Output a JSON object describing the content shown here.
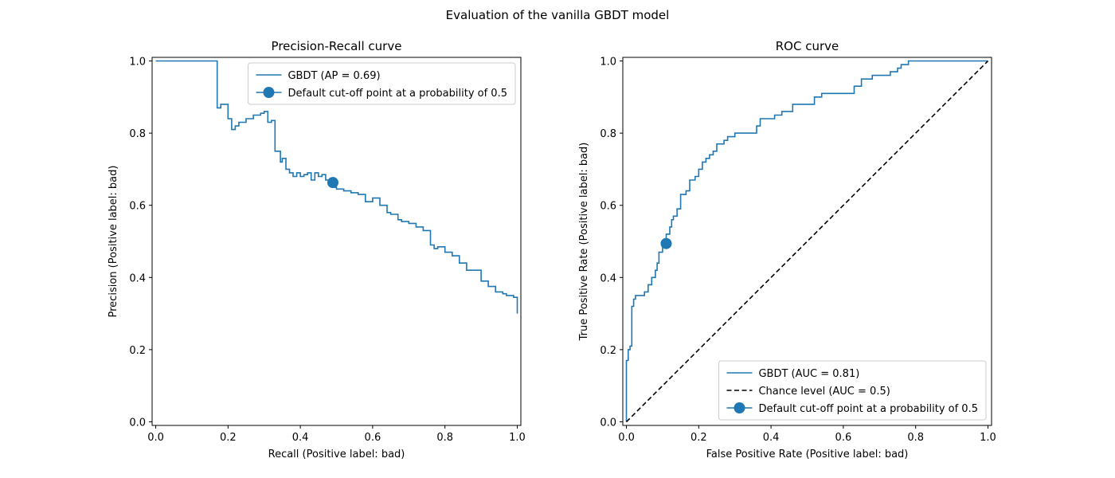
{
  "figure": {
    "suptitle": "Evaluation of the vanilla GBDT model"
  },
  "colors": {
    "series": "#1f77b4",
    "chance": "#000000",
    "axes": "#000000",
    "legend_border": "#cccccc",
    "background": "#ffffff"
  },
  "chart_data": [
    {
      "type": "line",
      "title": "Precision-Recall curve",
      "xlabel": "Recall (Positive label: bad)",
      "ylabel": "Precision (Positive label: bad)",
      "xlim": [
        -0.01,
        1.01
      ],
      "ylim": [
        -0.01,
        1.01
      ],
      "xticks": [
        "0.0",
        "0.2",
        "0.4",
        "0.6",
        "0.8",
        "1.0"
      ],
      "yticks": [
        "0.0",
        "0.2",
        "0.4",
        "0.6",
        "0.8",
        "1.0"
      ],
      "grid": false,
      "legend_position": "upper right",
      "step": "post",
      "series": [
        {
          "name": "GBDT (AP = 0.69)",
          "x": [
            0.0,
            0.17,
            0.17,
            0.18,
            0.2,
            0.21,
            0.22,
            0.23,
            0.24,
            0.25,
            0.26,
            0.27,
            0.28,
            0.29,
            0.3,
            0.31,
            0.32,
            0.33,
            0.345,
            0.35,
            0.36,
            0.37,
            0.38,
            0.39,
            0.4,
            0.41,
            0.42,
            0.43,
            0.44,
            0.45,
            0.46,
            0.47,
            0.48,
            0.49,
            0.5,
            0.52,
            0.54,
            0.56,
            0.58,
            0.6,
            0.62,
            0.64,
            0.65,
            0.67,
            0.68,
            0.7,
            0.72,
            0.74,
            0.76,
            0.77,
            0.78,
            0.8,
            0.82,
            0.84,
            0.86,
            0.88,
            0.9,
            0.92,
            0.94,
            0.96,
            0.97,
            0.98,
            0.99,
            1.0
          ],
          "y": [
            1.0,
            1.0,
            0.87,
            0.88,
            0.84,
            0.81,
            0.82,
            0.83,
            0.83,
            0.84,
            0.84,
            0.85,
            0.85,
            0.855,
            0.86,
            0.83,
            0.835,
            0.75,
            0.72,
            0.73,
            0.7,
            0.69,
            0.68,
            0.69,
            0.68,
            0.685,
            0.69,
            0.67,
            0.69,
            0.68,
            0.685,
            0.67,
            0.66,
            0.65,
            0.645,
            0.64,
            0.635,
            0.63,
            0.61,
            0.62,
            0.6,
            0.58,
            0.575,
            0.56,
            0.555,
            0.55,
            0.54,
            0.53,
            0.49,
            0.48,
            0.485,
            0.47,
            0.46,
            0.44,
            0.42,
            0.42,
            0.39,
            0.375,
            0.36,
            0.355,
            0.35,
            0.35,
            0.345,
            0.3
          ]
        }
      ],
      "marker": {
        "name": "Default cut-off point at a probability of 0.5",
        "x": 0.49,
        "y": 0.663
      }
    },
    {
      "type": "line",
      "title": "ROC curve",
      "xlabel": "False Positive Rate (Positive label: bad)",
      "ylabel": "True Positive Rate (Positive label: bad)",
      "xlim": [
        -0.01,
        1.01
      ],
      "ylim": [
        -0.01,
        1.01
      ],
      "xticks": [
        "0.0",
        "0.2",
        "0.4",
        "0.6",
        "0.8",
        "1.0"
      ],
      "yticks": [
        "0.0",
        "0.2",
        "0.4",
        "0.6",
        "0.8",
        "1.0"
      ],
      "grid": false,
      "legend_position": "lower right",
      "series": [
        {
          "name": "GBDT (AUC = 0.81)",
          "x": [
            0.0,
            0.0,
            0.005,
            0.005,
            0.01,
            0.01,
            0.015,
            0.015,
            0.02,
            0.02,
            0.025,
            0.025,
            0.05,
            0.05,
            0.06,
            0.06,
            0.07,
            0.07,
            0.08,
            0.08,
            0.085,
            0.085,
            0.09,
            0.09,
            0.1,
            0.1,
            0.11,
            0.11,
            0.12,
            0.12,
            0.125,
            0.125,
            0.13,
            0.13,
            0.14,
            0.14,
            0.15,
            0.15,
            0.165,
            0.165,
            0.175,
            0.175,
            0.19,
            0.19,
            0.2,
            0.2,
            0.21,
            0.21,
            0.22,
            0.22,
            0.23,
            0.23,
            0.24,
            0.24,
            0.25,
            0.25,
            0.27,
            0.27,
            0.28,
            0.28,
            0.3,
            0.3,
            0.36,
            0.36,
            0.37,
            0.37,
            0.41,
            0.41,
            0.43,
            0.43,
            0.46,
            0.46,
            0.52,
            0.52,
            0.54,
            0.54,
            0.63,
            0.63,
            0.65,
            0.65,
            0.68,
            0.68,
            0.73,
            0.73,
            0.75,
            0.75,
            0.76,
            0.76,
            0.78,
            0.78,
            0.81,
            0.81,
            1.0
          ],
          "y": [
            0.0,
            0.17,
            0.17,
            0.2,
            0.2,
            0.21,
            0.21,
            0.32,
            0.32,
            0.34,
            0.34,
            0.35,
            0.35,
            0.36,
            0.36,
            0.38,
            0.38,
            0.4,
            0.4,
            0.42,
            0.42,
            0.44,
            0.44,
            0.47,
            0.47,
            0.49,
            0.49,
            0.52,
            0.52,
            0.54,
            0.54,
            0.56,
            0.56,
            0.57,
            0.57,
            0.59,
            0.59,
            0.63,
            0.63,
            0.64,
            0.64,
            0.67,
            0.67,
            0.68,
            0.68,
            0.7,
            0.7,
            0.72,
            0.72,
            0.73,
            0.73,
            0.74,
            0.74,
            0.75,
            0.75,
            0.77,
            0.77,
            0.78,
            0.78,
            0.79,
            0.79,
            0.8,
            0.8,
            0.82,
            0.82,
            0.84,
            0.84,
            0.85,
            0.85,
            0.86,
            0.86,
            0.88,
            0.88,
            0.9,
            0.9,
            0.91,
            0.91,
            0.93,
            0.93,
            0.95,
            0.95,
            0.96,
            0.96,
            0.97,
            0.97,
            0.98,
            0.98,
            0.99,
            0.99,
            1.0,
            1.0,
            1.0,
            1.0
          ]
        },
        {
          "name": "Chance level (AUC = 0.5)",
          "x": [
            0.0,
            1.0
          ],
          "y": [
            0.0,
            1.0
          ],
          "dashed": true
        }
      ],
      "marker": {
        "name": "Default cut-off point at a probability of 0.5",
        "x": 0.11,
        "y": 0.494
      }
    }
  ]
}
